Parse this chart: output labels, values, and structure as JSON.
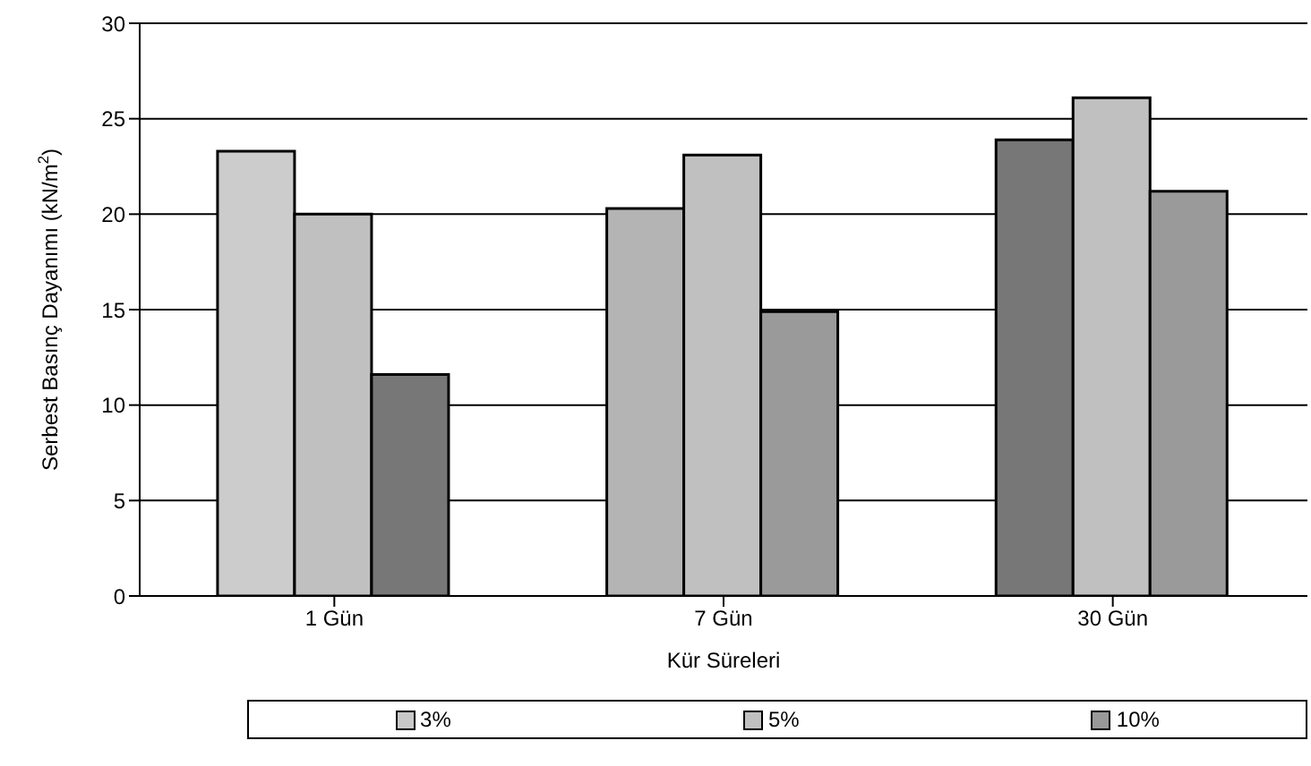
{
  "chart_data": {
    "type": "bar",
    "xlabel": "Kür Süreleri",
    "ylabel": "Serbest Basınç Dayanımı (kN/m$^{2}$)",
    "categories": [
      "1 Gün",
      "7 Gün",
      "30 Gün"
    ],
    "series": [
      {
        "name": "3%",
        "color": "#c8c8c8",
        "colors": [
          "#cccccc",
          "#b4b4b4",
          "#777777"
        ],
        "values": [
          23.3,
          20.3,
          23.9
        ]
      },
      {
        "name": "5%",
        "color": "#c0c0c0",
        "colors": [
          "#c0c0c0",
          "#c0c0c0",
          "#c0c0c0"
        ],
        "values": [
          20.0,
          23.1,
          26.1
        ]
      },
      {
        "name": "10%",
        "color": "#999999",
        "colors": [
          "#777777",
          "#9a9a9a",
          "#9a9a9a"
        ],
        "values": [
          11.6,
          14.9,
          21.2
        ]
      }
    ],
    "ylim": [
      0,
      30
    ],
    "yticks": [
      0,
      5,
      10,
      15,
      20,
      25,
      30
    ],
    "grid": "y",
    "legend": "bottom"
  }
}
